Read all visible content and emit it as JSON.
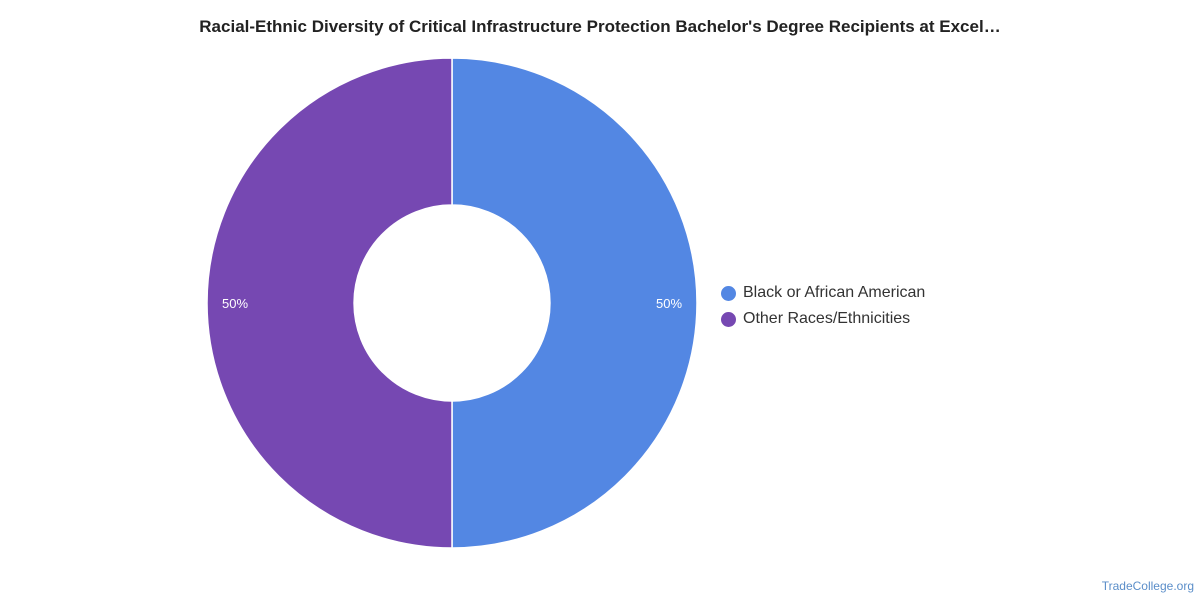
{
  "chart_data": {
    "type": "pie",
    "title": "Racial-Ethnic Diversity of Critical Infrastructure Protection Bachelor's Degree Recipients at Excel…",
    "categories": [
      "Black or African American",
      "Other Races/Ethnicities"
    ],
    "values": [
      50,
      50
    ],
    "data_labels": [
      "50%",
      "50%"
    ],
    "colors": [
      "#5387e3",
      "#7648b2"
    ],
    "donut": true,
    "legend": "right"
  },
  "source_text": "TradeCollege.org"
}
